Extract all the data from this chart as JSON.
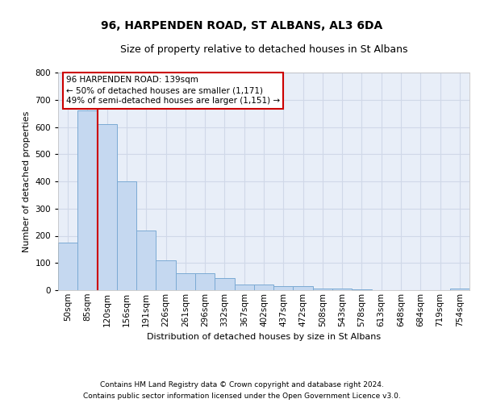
{
  "title_line1": "96, HARPENDEN ROAD, ST ALBANS, AL3 6DA",
  "title_line2": "Size of property relative to detached houses in St Albans",
  "xlabel": "Distribution of detached houses by size in St Albans",
  "ylabel": "Number of detached properties",
  "footnote1": "Contains HM Land Registry data © Crown copyright and database right 2024.",
  "footnote2": "Contains public sector information licensed under the Open Government Licence v3.0.",
  "annotation_line1": "96 HARPENDEN ROAD: 139sqm",
  "annotation_line2": "← 50% of detached houses are smaller (1,171)",
  "annotation_line3": "49% of semi-detached houses are larger (1,151) →",
  "bar_color": "#c5d8f0",
  "bar_edge_color": "#7baad4",
  "vline_color": "#cc0000",
  "vline_x_pos": 1.5,
  "categories": [
    "50sqm",
    "85sqm",
    "120sqm",
    "156sqm",
    "191sqm",
    "226sqm",
    "261sqm",
    "296sqm",
    "332sqm",
    "367sqm",
    "402sqm",
    "437sqm",
    "472sqm",
    "508sqm",
    "543sqm",
    "578sqm",
    "613sqm",
    "648sqm",
    "684sqm",
    "719sqm",
    "754sqm"
  ],
  "values": [
    175,
    660,
    610,
    400,
    220,
    110,
    63,
    63,
    45,
    20,
    20,
    15,
    15,
    5,
    5,
    2,
    0,
    0,
    0,
    0,
    7
  ],
  "ylim": [
    0,
    800
  ],
  "yticks": [
    0,
    100,
    200,
    300,
    400,
    500,
    600,
    700,
    800
  ],
  "background_color": "#e8eef8",
  "grid_color": "#d0d8e8",
  "fig_background": "#ffffff",
  "title1_fontsize": 10,
  "title2_fontsize": 9,
  "ylabel_fontsize": 8,
  "xlabel_fontsize": 8,
  "tick_fontsize": 7.5,
  "footnote_fontsize": 6.5,
  "annotation_fontsize": 7.5
}
